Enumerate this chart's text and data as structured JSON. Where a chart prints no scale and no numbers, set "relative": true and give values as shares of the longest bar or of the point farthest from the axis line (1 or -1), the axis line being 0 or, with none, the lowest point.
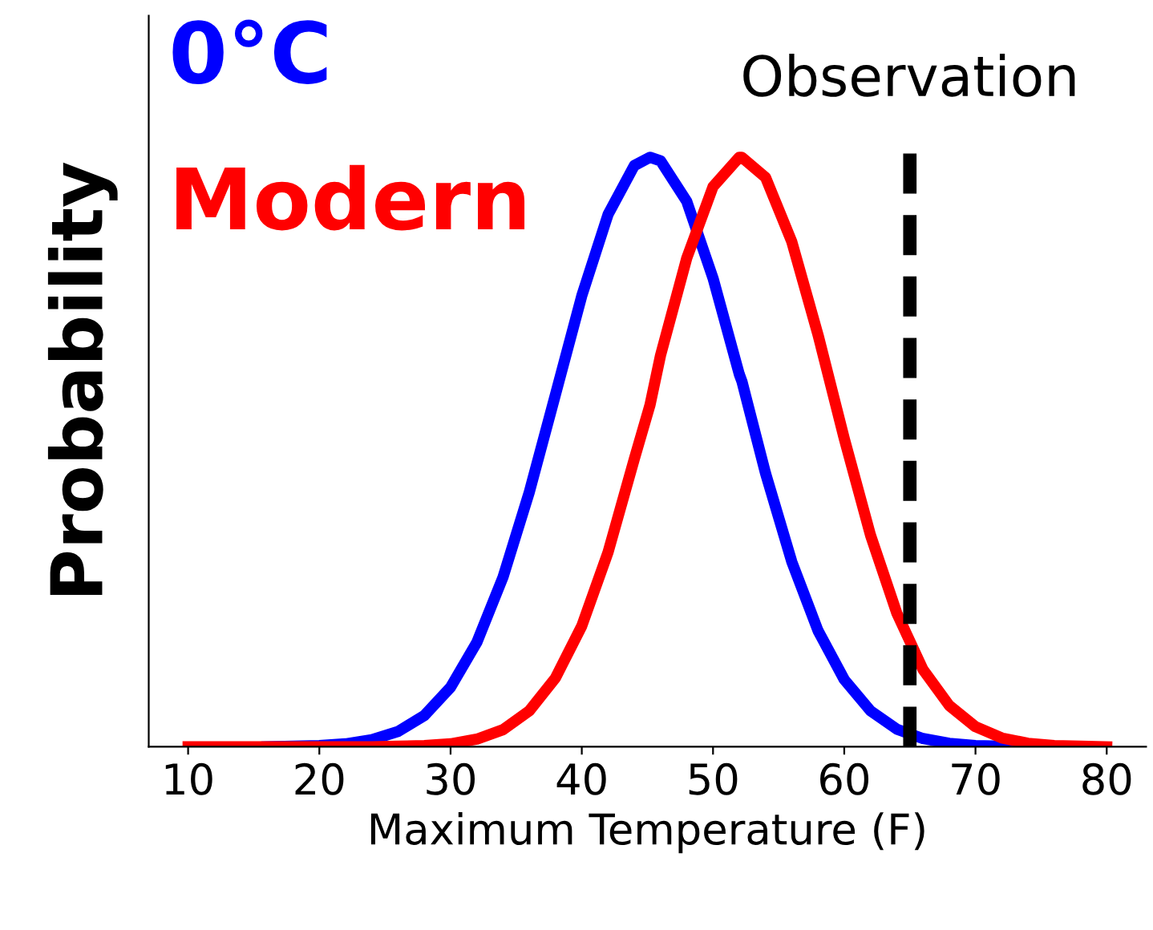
{
  "chart_data": {
    "type": "line",
    "relative": true,
    "xlabel": "Maximum Temperature (F)",
    "ylabel": "Probability",
    "x": [
      10,
      12,
      14,
      16,
      18,
      20,
      22,
      24,
      26,
      28,
      30,
      32,
      34,
      36,
      38,
      40,
      42,
      44,
      45.2,
      46,
      48,
      50,
      52,
      52.2,
      54,
      56,
      58,
      60,
      62,
      64,
      66,
      68,
      70,
      72,
      74,
      76,
      78,
      80
    ],
    "series": [
      {
        "name": "0°C",
        "color": "#0000ff",
        "values": [
          null,
          null,
          null,
          0,
          0.001,
          0.002,
          0.005,
          0.012,
          0.026,
          0.053,
          0.101,
          0.177,
          0.288,
          0.432,
          0.598,
          0.765,
          0.903,
          0.986,
          1,
          0.994,
          0.925,
          0.795,
          0.632,
          0.62,
          0.464,
          0.314,
          0.197,
          0.114,
          0.061,
          0.03,
          0.014,
          0.006,
          0.002,
          0.001,
          0,
          0,
          null,
          null
        ]
      },
      {
        "name": "Modern",
        "color": "#ff0000",
        "values": [
          0,
          0,
          0,
          0,
          0,
          0,
          0,
          0,
          0.001,
          0.002,
          0.005,
          0.013,
          0.029,
          0.061,
          0.117,
          0.205,
          0.33,
          0.488,
          0.58,
          0.664,
          0.829,
          0.95,
          1,
          1,
          0.966,
          0.857,
          0.699,
          0.523,
          0.359,
          0.227,
          0.131,
          0.07,
          0.034,
          0.015,
          0.006,
          0.002,
          0.001,
          0
        ]
      }
    ],
    "xlim": [
      7,
      83
    ],
    "xticks": [
      10,
      20,
      30,
      40,
      50,
      60,
      70,
      80
    ],
    "ref_lines": [
      {
        "axis": "x",
        "value": 65,
        "label": "Observation",
        "color": "#000000",
        "line_style": "dashed"
      }
    ],
    "legend": "top left",
    "grid": false,
    "marker": "none",
    "line_style": "solid"
  }
}
